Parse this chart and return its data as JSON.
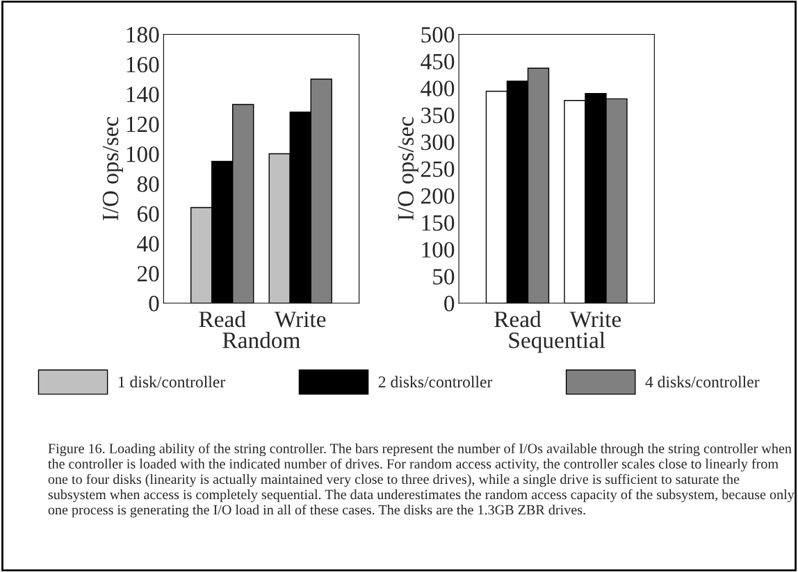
{
  "chart_data": [
    {
      "type": "bar",
      "categories": [
        "Read",
        "Write"
      ],
      "xlabel": "Random",
      "ylabel": "I/O ops/sec",
      "ylim": [
        0,
        180
      ],
      "yticks": [
        0,
        20,
        40,
        60,
        80,
        100,
        120,
        140,
        160,
        180
      ],
      "grid": false,
      "legend": "bottom",
      "series": [
        {
          "name": "1 disk/controller",
          "color": "#c0c0c0",
          "values": [
            64,
            100
          ]
        },
        {
          "name": "2 disks/controller",
          "color": "#000000",
          "values": [
            95,
            128
          ]
        },
        {
          "name": "4 disks/controller",
          "color": "#808080",
          "values": [
            133,
            150
          ]
        }
      ],
      "annotations": [
        "Figure 16. Loading ability of the string controller. The bars represent the number of I/Os available through the string controller when the controller is loaded with the indicated number of drives. For random access activity, the controller scales close to linearly from one to four disks (linearity is actually maintained very close to three drives), while a single drive is sufficient to saturate the subsystem when access is completely sequential. The data underestimates the random access capacity of the subsystem, because only one process is generating the I/O load in all of these cases. The disks are the 1.3GB ZBR drives."
      ]
    },
    {
      "type": "bar",
      "categories": [
        "Read",
        "Write"
      ],
      "xlabel": "Sequential",
      "ylabel": "I/O ops/sec",
      "ylim": [
        0,
        500
      ],
      "yticks": [
        0,
        50,
        100,
        150,
        200,
        250,
        300,
        350,
        400,
        450,
        500
      ],
      "grid": false,
      "series": [
        {
          "color": "#ffffff",
          "values": [
            394,
            377
          ]
        },
        {
          "color": "#000000",
          "values": [
            413,
            390
          ]
        },
        {
          "color": "#808080",
          "values": [
            437,
            380
          ]
        }
      ]
    }
  ]
}
